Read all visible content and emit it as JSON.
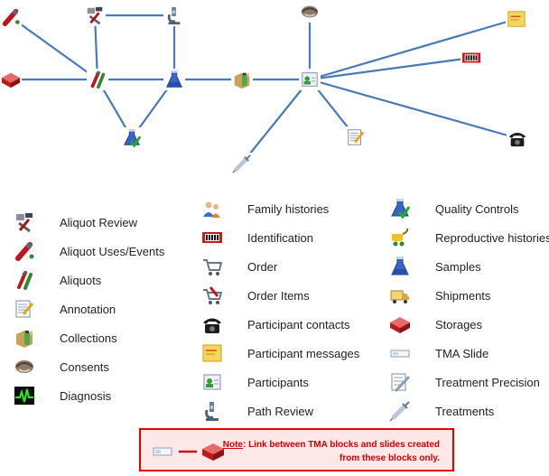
{
  "legend": {
    "col1": [
      {
        "label": "Aliquot Review",
        "icon": "aliquot-review-icon"
      },
      {
        "label": "Aliquot Uses/Events",
        "icon": "aliquot-uses-events-icon"
      },
      {
        "label": "Aliquots",
        "icon": "aliquots-icon"
      },
      {
        "label": "Annotation",
        "icon": "annotation-icon"
      },
      {
        "label": "Collections",
        "icon": "collections-icon"
      },
      {
        "label": "Consents",
        "icon": "consents-icon"
      },
      {
        "label": "Diagnosis",
        "icon": "diagnosis-icon"
      }
    ],
    "col2": [
      {
        "label": "Family histories",
        "icon": "family-histories-icon"
      },
      {
        "label": "Identification",
        "icon": "identification-icon"
      },
      {
        "label": "Order",
        "icon": "order-icon"
      },
      {
        "label": "Order Items",
        "icon": "order-items-icon"
      },
      {
        "label": "Participant contacts",
        "icon": "participant-contacts-icon"
      },
      {
        "label": "Participant messages",
        "icon": "participant-messages-icon"
      },
      {
        "label": "Participants",
        "icon": "participants-icon"
      },
      {
        "label": "Path Review",
        "icon": "path-review-icon"
      }
    ],
    "col3": [
      {
        "label": "Quality Controls",
        "icon": "quality-controls-icon"
      },
      {
        "label": "Reproductive histories",
        "icon": "reproductive-histories-icon"
      },
      {
        "label": "Samples",
        "icon": "samples-icon"
      },
      {
        "label": "Shipments",
        "icon": "shipments-icon"
      },
      {
        "label": "Storages",
        "icon": "storages-icon"
      },
      {
        "label": "TMA Slide",
        "icon": "tma-slide-icon"
      },
      {
        "label": "Treatment Precision",
        "icon": "treatment-precision-icon"
      },
      {
        "label": "Treatments",
        "icon": "treatments-icon"
      }
    ]
  },
  "note": {
    "label": "Note",
    "text": ": Link between TMA blocks and slides created from these blocks only."
  },
  "colors": {
    "edge": "#4a78b8",
    "note_border": "#e60000",
    "note_background": "#fde8e8",
    "note_text": "#d40000"
  }
}
